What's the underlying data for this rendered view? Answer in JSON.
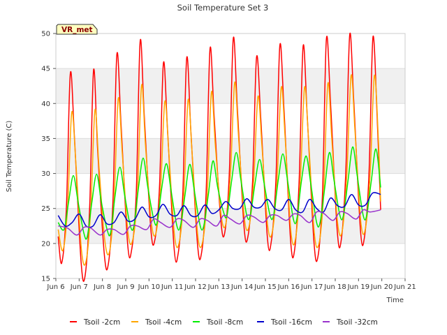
{
  "chart_data": {
    "type": "line",
    "title": "Soil Temperature Set 3",
    "xlabel": "Time",
    "ylabel": "Soil Temperature (C)",
    "site_label": "VR_met",
    "ylim": [
      15,
      50
    ],
    "xlim": [
      6,
      21
    ],
    "yticks": [
      15,
      20,
      25,
      30,
      35,
      40,
      45,
      50
    ],
    "xticks": [
      {
        "v": 6,
        "label": "Jun 6"
      },
      {
        "v": 7,
        "label": "Jun 7"
      },
      {
        "v": 8,
        "label": "Jun 8"
      },
      {
        "v": 9,
        "label": "Jun 9"
      },
      {
        "v": 10,
        "label": "Jun 10"
      },
      {
        "v": 11,
        "label": "Jun 11"
      },
      {
        "v": 12,
        "label": "Jun 12"
      },
      {
        "v": 13,
        "label": "Jun 13"
      },
      {
        "v": 14,
        "label": "Jun 14"
      },
      {
        "v": 15,
        "label": "Jun 15"
      },
      {
        "v": 16,
        "label": "Jun 16"
      },
      {
        "v": 17,
        "label": "Jun 17"
      },
      {
        "v": 18,
        "label": "Jun 18"
      },
      {
        "v": 19,
        "label": "Jun 19"
      },
      {
        "v": 20,
        "label": "Jun 20"
      },
      {
        "v": 21,
        "label": "Jun 21"
      }
    ],
    "grid": true,
    "legend_position": "bottom",
    "series": [
      {
        "name": "Tsoil -2cm",
        "color": "#ff0000",
        "x": [
          6.1,
          6.25,
          6.45,
          6.62,
          6.8,
          7.08,
          7.25,
          7.45,
          7.62,
          7.8,
          8.08,
          8.25,
          8.45,
          8.62,
          8.8,
          9.08,
          9.25,
          9.45,
          9.62,
          9.8,
          10.08,
          10.25,
          10.45,
          10.62,
          10.8,
          11.08,
          11.25,
          11.45,
          11.62,
          11.8,
          12.08,
          12.25,
          12.45,
          12.62,
          12.8,
          13.08,
          13.25,
          13.45,
          13.62,
          13.8,
          14.08,
          14.25,
          14.45,
          14.62,
          14.8,
          15.08,
          15.25,
          15.45,
          15.62,
          15.8,
          16.08,
          16.25,
          16.45,
          16.62,
          16.8,
          17.08,
          17.25,
          17.45,
          17.62,
          17.8,
          18.08,
          18.25,
          18.45,
          18.62,
          18.8,
          19.08,
          19.25,
          19.45,
          19.62,
          19.8,
          19.95
        ],
        "y": [
          21,
          17.2,
          25,
          44.3,
          35,
          17.5,
          15.3,
          25,
          44.8,
          33,
          18.5,
          17,
          26,
          47,
          37,
          20,
          19,
          27,
          48.9,
          38,
          22,
          20.5,
          28,
          45.8,
          36,
          19.3,
          18.5,
          27,
          46.5,
          36,
          20,
          18.5,
          27,
          47.8,
          38,
          23.5,
          21.5,
          30,
          49.3,
          39,
          22.5,
          21,
          29,
          46.6,
          38,
          21,
          20.2,
          29,
          48.3,
          39,
          20.5,
          19,
          29,
          48.2,
          38,
          20.5,
          18,
          27,
          49.2,
          40,
          22,
          20.3,
          30,
          49.8,
          40,
          22,
          20.8,
          30,
          49.5,
          38,
          24.8
        ]
      },
      {
        "name": "Tsoil -4cm",
        "color": "#ffa500",
        "x": [
          6.1,
          6.3,
          6.5,
          6.68,
          6.85,
          7.1,
          7.3,
          7.5,
          7.68,
          7.85,
          8.1,
          8.3,
          8.5,
          8.68,
          8.85,
          9.1,
          9.3,
          9.5,
          9.68,
          9.85,
          10.1,
          10.3,
          10.5,
          10.68,
          10.85,
          11.1,
          11.3,
          11.5,
          11.68,
          11.85,
          12.1,
          12.3,
          12.5,
          12.68,
          12.85,
          13.1,
          13.3,
          13.5,
          13.68,
          13.85,
          14.1,
          14.3,
          14.5,
          14.68,
          14.85,
          15.1,
          15.3,
          15.5,
          15.68,
          15.85,
          16.1,
          16.3,
          16.5,
          16.68,
          16.85,
          17.1,
          17.3,
          17.5,
          17.68,
          17.85,
          18.1,
          18.3,
          18.5,
          18.68,
          18.85,
          19.1,
          19.3,
          19.5,
          19.68,
          19.85,
          19.95
        ],
        "y": [
          22,
          19,
          25,
          38.7,
          32,
          19,
          17.5,
          25,
          39.1,
          31,
          20.5,
          18.8,
          26,
          40.7,
          33,
          21.5,
          20.5,
          27,
          42.6,
          34,
          23,
          21.5,
          28,
          40.3,
          33,
          21,
          20.2,
          27,
          40.5,
          33,
          21,
          20.2,
          27,
          41.6,
          34,
          24,
          22.8,
          30,
          43,
          35,
          23.5,
          22.5,
          29,
          41,
          34,
          22.5,
          21.7,
          29,
          42.3,
          35,
          21.5,
          20.8,
          29,
          42.3,
          35,
          21.5,
          20,
          27,
          42.8,
          35,
          23,
          21.8,
          30,
          44,
          36,
          23,
          22.2,
          30,
          44,
          35,
          26
        ]
      },
      {
        "name": "Tsoil -8cm",
        "color": "#00ee00",
        "x": [
          6.1,
          6.35,
          6.55,
          6.75,
          6.95,
          7.2,
          7.35,
          7.55,
          7.75,
          7.95,
          8.2,
          8.35,
          8.55,
          8.75,
          8.95,
          9.2,
          9.35,
          9.55,
          9.75,
          9.95,
          10.2,
          10.35,
          10.55,
          10.75,
          10.95,
          11.2,
          11.35,
          11.55,
          11.75,
          11.95,
          12.2,
          12.35,
          12.55,
          12.75,
          12.95,
          13.2,
          13.35,
          13.55,
          13.75,
          13.95,
          14.2,
          14.35,
          14.55,
          14.75,
          14.95,
          15.2,
          15.35,
          15.55,
          15.75,
          15.95,
          16.2,
          16.35,
          16.55,
          16.75,
          16.95,
          17.2,
          17.35,
          17.55,
          17.75,
          17.95,
          18.2,
          18.35,
          18.55,
          18.75,
          18.95,
          19.2,
          19.35,
          19.55,
          19.75,
          19.95
        ],
        "y": [
          23,
          22,
          26,
          29.7,
          26,
          21.5,
          21,
          26,
          29.9,
          26,
          22,
          21.5,
          27,
          30.9,
          27,
          22.5,
          22.5,
          28,
          32.2,
          28,
          23.5,
          23,
          28,
          31.4,
          27.5,
          22.5,
          22.5,
          27,
          31.3,
          27.5,
          22.5,
          22.5,
          27,
          31.8,
          28,
          24.5,
          24,
          29,
          33,
          29,
          24,
          24,
          28.5,
          32,
          28.5,
          24,
          24,
          29,
          32.8,
          29,
          23.5,
          23.5,
          29,
          32.5,
          28.5,
          23,
          23,
          28,
          33,
          29,
          24,
          24,
          29,
          33.8,
          29.5,
          24,
          24,
          29,
          33.5,
          28
        ]
      },
      {
        "name": "Tsoil -16cm",
        "color": "#0000cc",
        "x": [
          6.1,
          6.4,
          6.7,
          7.0,
          7.3,
          7.6,
          7.9,
          8.2,
          8.5,
          8.8,
          9.1,
          9.4,
          9.7,
          10.0,
          10.3,
          10.6,
          10.9,
          11.2,
          11.5,
          11.8,
          12.1,
          12.4,
          12.7,
          13.0,
          13.3,
          13.6,
          13.9,
          14.2,
          14.5,
          14.8,
          15.1,
          15.4,
          15.7,
          16.0,
          16.3,
          16.6,
          16.9,
          17.2,
          17.5,
          17.8,
          18.1,
          18.4,
          18.7,
          19.0,
          19.3,
          19.6,
          19.95
        ],
        "y": [
          24,
          22.5,
          23,
          24.2,
          22.5,
          22.5,
          24.1,
          22.8,
          23,
          24.5,
          23.2,
          23.5,
          25.2,
          23.8,
          24,
          25.6,
          24.2,
          24,
          25.4,
          24,
          24,
          25.5,
          24.3,
          24.8,
          26,
          25,
          25,
          26.4,
          25.2,
          25.2,
          26.3,
          25,
          24.8,
          26.3,
          24.8,
          24.5,
          26.3,
          25,
          24.5,
          26.5,
          25.4,
          25.3,
          27,
          25.5,
          25.5,
          27.2,
          27
        ]
      },
      {
        "name": "Tsoil -32cm",
        "color": "#9932cc",
        "x": [
          6.1,
          6.5,
          6.9,
          7.2,
          7.5,
          7.9,
          8.2,
          8.5,
          8.9,
          9.2,
          9.5,
          9.9,
          10.2,
          10.5,
          10.9,
          11.2,
          11.5,
          11.9,
          12.2,
          12.5,
          12.9,
          13.2,
          13.5,
          13.9,
          14.2,
          14.5,
          14.9,
          15.2,
          15.5,
          15.9,
          16.2,
          16.5,
          16.9,
          17.2,
          17.5,
          17.9,
          18.2,
          18.5,
          18.9,
          19.2,
          19.5,
          19.95
        ],
        "y": [
          22.5,
          22.2,
          21.2,
          22.3,
          22.2,
          21.2,
          22,
          22,
          21.3,
          22.5,
          22.5,
          22,
          23.5,
          23,
          22.3,
          23.5,
          23.3,
          22.3,
          23.5,
          23.3,
          22.5,
          24,
          23.5,
          22.8,
          24,
          23.8,
          23,
          24,
          24,
          23.3,
          24.2,
          24,
          23,
          24.5,
          24.3,
          23.3,
          24.5,
          24.3,
          23.5,
          24.8,
          24.5,
          24.8
        ]
      }
    ]
  }
}
